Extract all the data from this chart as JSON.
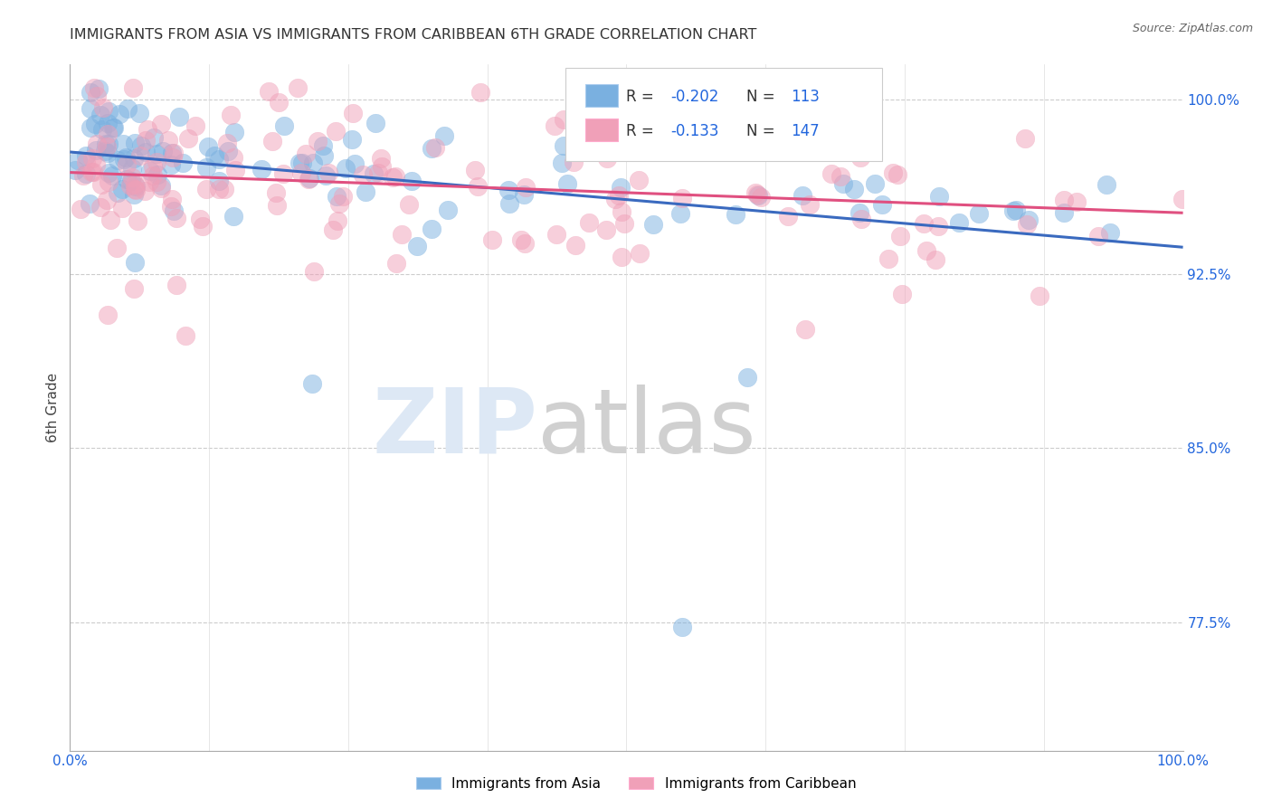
{
  "title": "IMMIGRANTS FROM ASIA VS IMMIGRANTS FROM CARIBBEAN 6TH GRADE CORRELATION CHART",
  "source": "Source: ZipAtlas.com",
  "ylabel": "6th Grade",
  "ytick_labels": [
    "100.0%",
    "92.5%",
    "85.0%",
    "77.5%"
  ],
  "ytick_values": [
    1.0,
    0.925,
    0.85,
    0.775
  ],
  "xlim": [
    0.0,
    1.0
  ],
  "ylim": [
    0.72,
    1.015
  ],
  "legend_label_asia": "Immigrants from Asia",
  "legend_label_caribbean": "Immigrants from Caribbean",
  "R_asia": -0.202,
  "N_asia": 113,
  "R_caribbean": -0.133,
  "N_caribbean": 147,
  "color_asia": "#7ab0e0",
  "color_caribbean": "#f0a0b8",
  "line_color_asia": "#3a6abf",
  "line_color_caribbean": "#e05080",
  "background_color": "#ffffff"
}
